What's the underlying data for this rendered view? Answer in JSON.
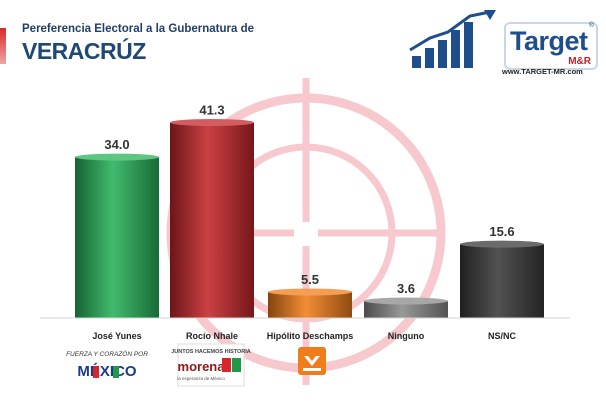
{
  "header": {
    "subtitle": "Pereferencia Electoral a la Gubernatura de",
    "title": "VERACRÚZ"
  },
  "brand": {
    "name": "Target",
    "sub": "M&R",
    "reg": "®",
    "url": "www.TARGET-MR.com"
  },
  "logos": {
    "pri_line1": "FUERZA Y CORAZÓN POR",
    "pri_line2": "MÉXICO",
    "morena_line1": "JUNTOS HACEMOS HISTORIA",
    "morena_line2": "morena",
    "morena_line3": "la esperanza de México"
  },
  "colors": {
    "green": "#28b25a",
    "red": "#c4262b",
    "orange": "#f07d1a",
    "gray": "#8a8a8a",
    "dark": "#3a3a3a",
    "crosshair": "#f7c9cf"
  },
  "chart_data": {
    "type": "bar",
    "title": "",
    "xlabel": "",
    "ylabel": "",
    "categories": [
      "José Yunes",
      "Rocío Nhale",
      "Hipólito Deschamps",
      "Ninguno",
      "NS/NC"
    ],
    "values": [
      34.0,
      41.3,
      5.5,
      3.6,
      15.6
    ],
    "value_labels": [
      "34.0",
      "41.3",
      "5.5",
      "3.6",
      "15.6"
    ],
    "bar_colors": [
      "#28b25a",
      "#c4262b",
      "#f07d1a",
      "#8a8a8a",
      "#3a3a3a"
    ],
    "ylim": [
      0,
      45
    ],
    "grid": false,
    "legend": "none"
  }
}
